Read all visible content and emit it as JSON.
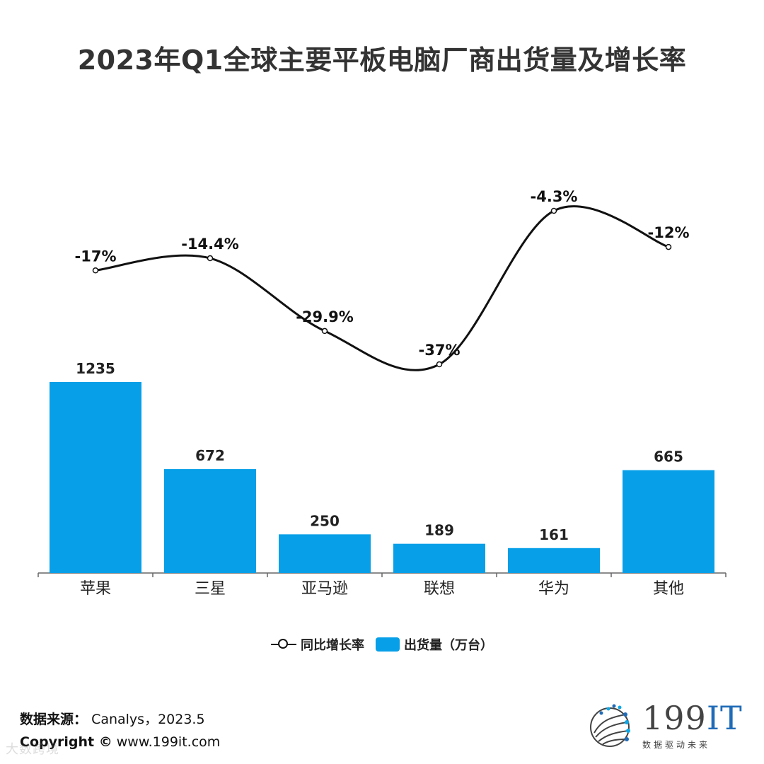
{
  "title": "2023年Q1全球主要平板电脑厂商出货量及增长率",
  "legend": {
    "line_label": "同比增长率",
    "bar_label": "出货量（万台）"
  },
  "footer": {
    "source_label": "数据来源：",
    "source_value": "Canalys，2023.5",
    "copyright_label": "Copyright ©",
    "copyright_value": "www.199it.com",
    "watermark": "大数跨境"
  },
  "logo": {
    "main_prefix": "199",
    "main_suffix": "IT",
    "subtitle": "数据驱动未来"
  },
  "chart_data": {
    "type": "bar",
    "categories": [
      "苹果",
      "三星",
      "亚马逊",
      "联想",
      "华为",
      "其他"
    ],
    "series": [
      {
        "name": "出货量（万台）",
        "type": "bar",
        "values": [
          1235,
          672,
          250,
          189,
          161,
          665
        ],
        "labels": [
          "1235",
          "672",
          "250",
          "189",
          "161",
          "665"
        ],
        "color": "#069fe8"
      },
      {
        "name": "同比增长率",
        "type": "line",
        "values": [
          -17,
          -14.4,
          -29.9,
          -37,
          -4.3,
          -12
        ],
        "labels": [
          "-17%",
          "-14.4%",
          "-29.9%",
          "-37%",
          "-4.3%",
          "-12%"
        ],
        "color": "#111111"
      }
    ],
    "bar_axis_range": [
      0,
      1235
    ],
    "line_axis_range": [
      -37,
      -4.3
    ],
    "grid": false,
    "legend_position": "bottom-center"
  }
}
